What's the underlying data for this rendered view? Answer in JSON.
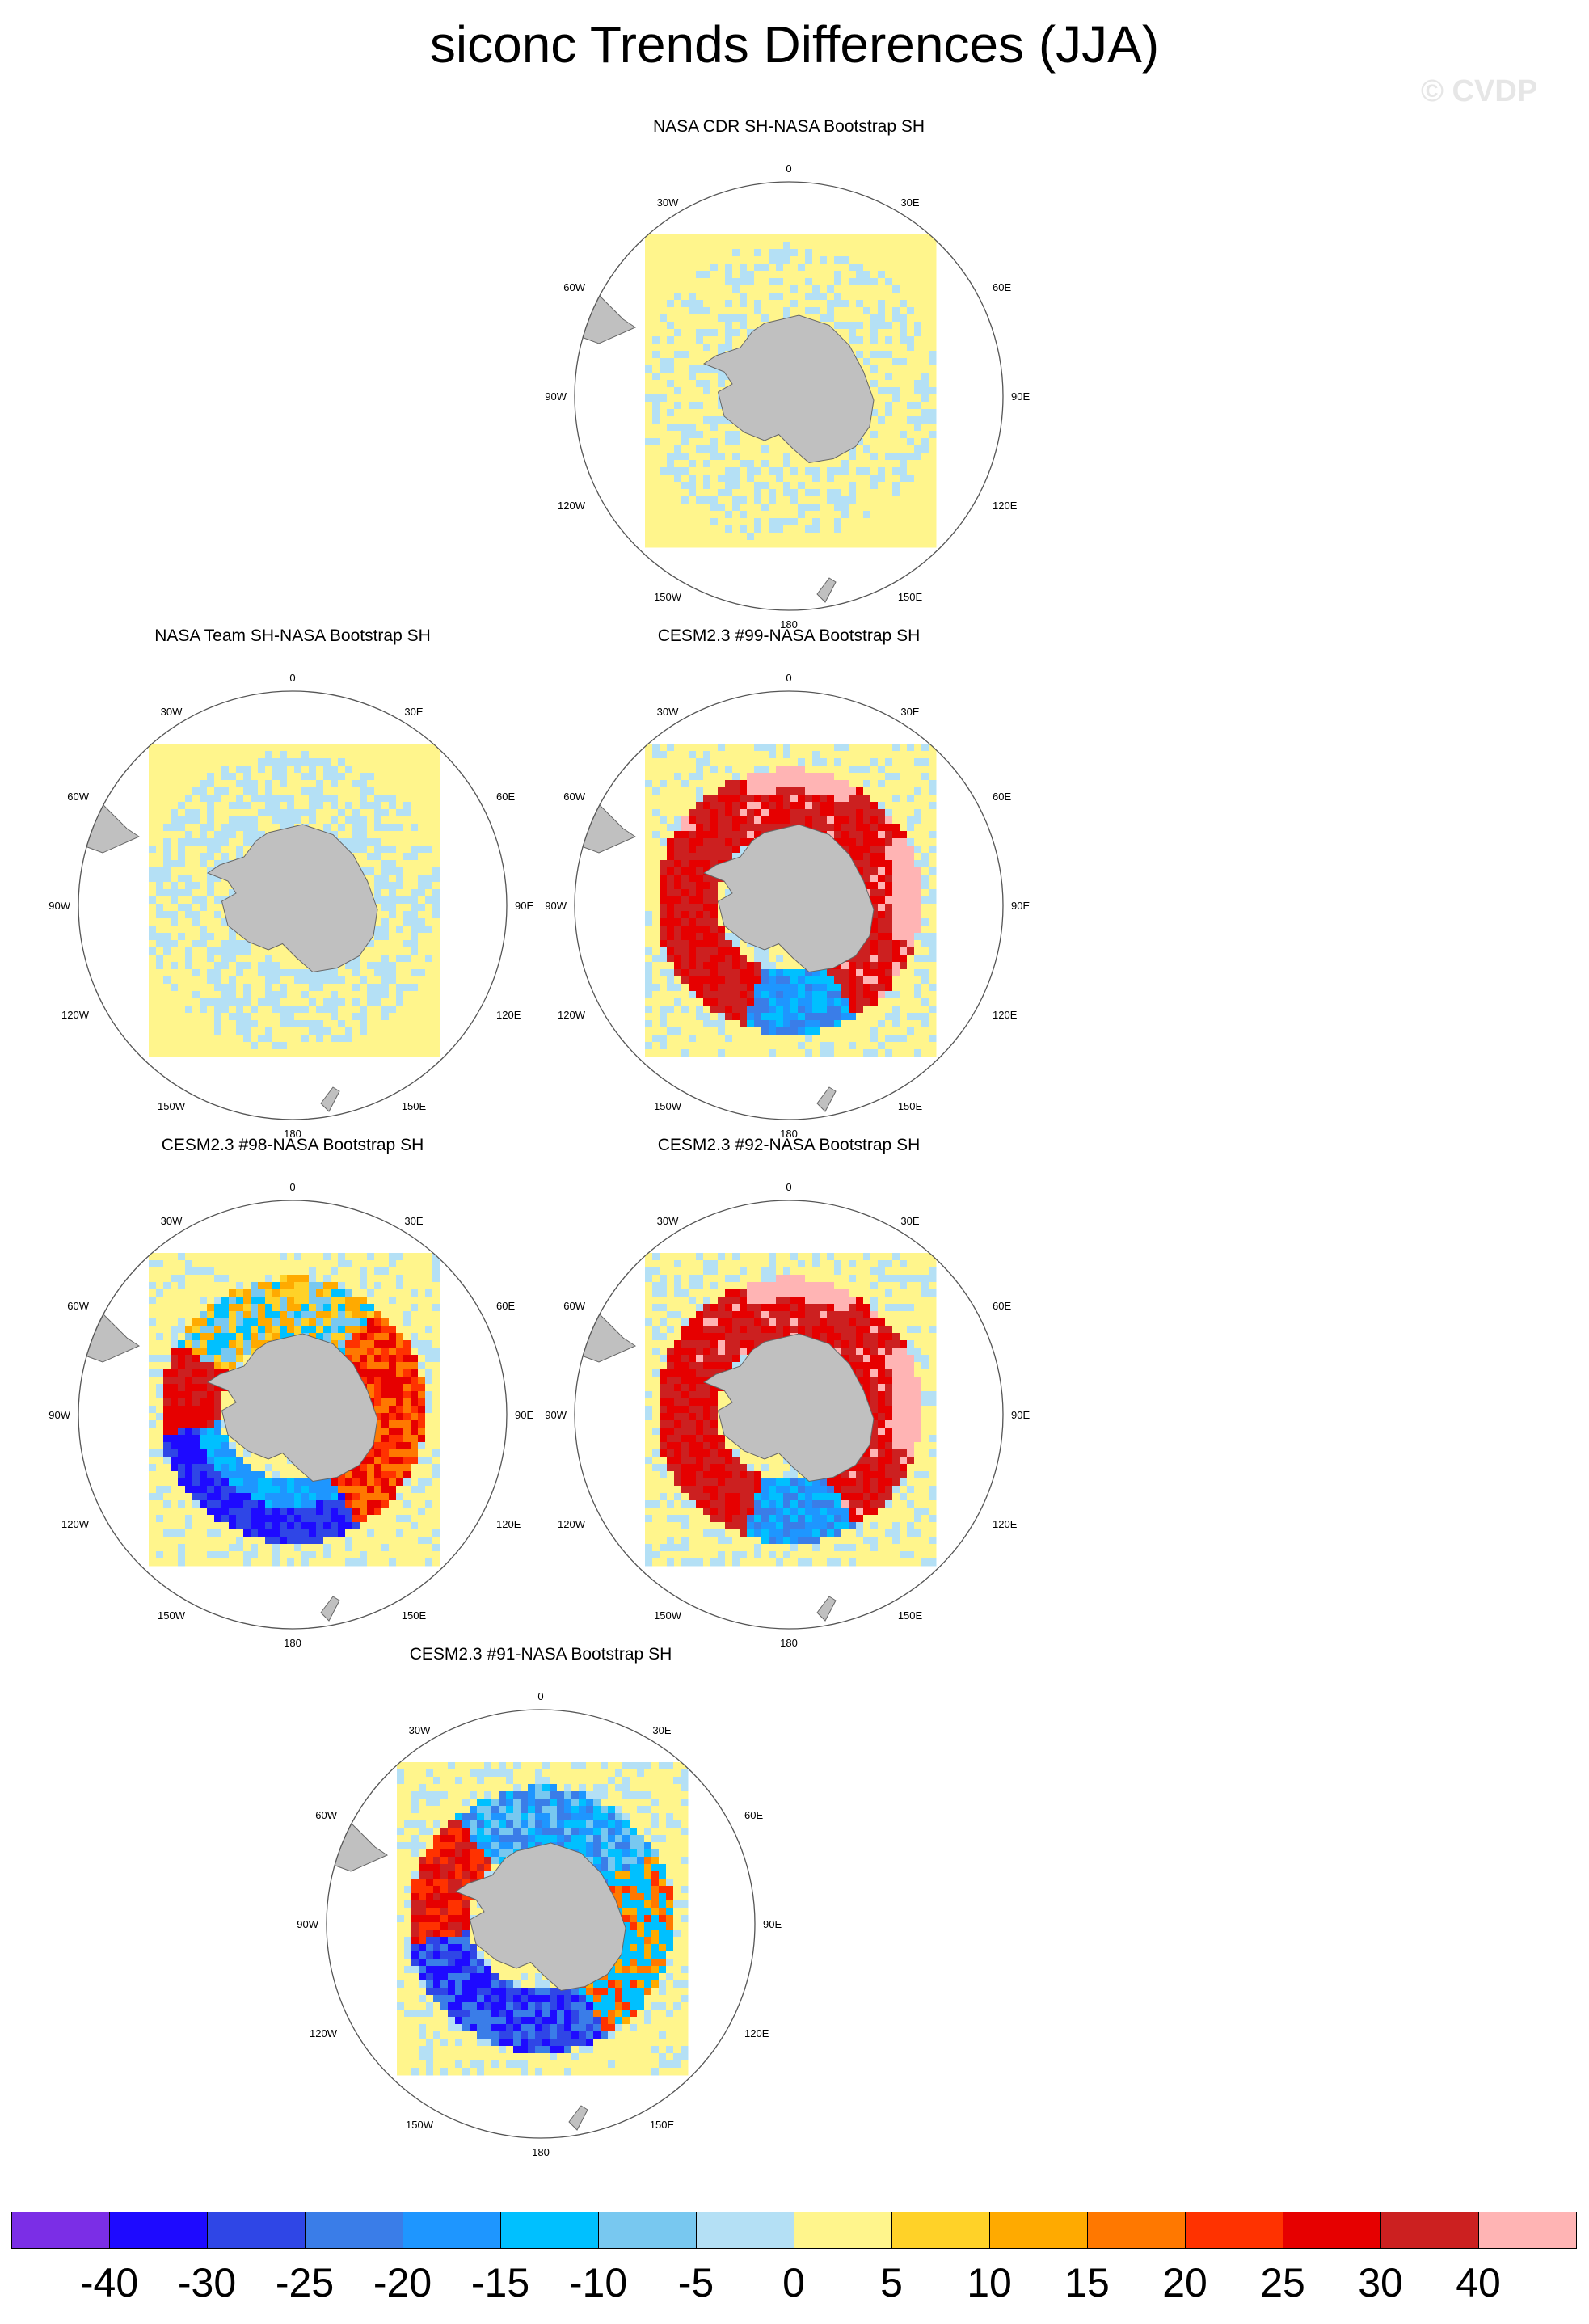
{
  "title": "siconc Trends Differences (JJA)",
  "watermark": "© CVDP",
  "panels": [
    {
      "title": "NASA CDR SH-NASA Bootstrap SH",
      "pattern": "cdr"
    },
    {
      "title": "NASA Team SH-NASA Bootstrap SH",
      "pattern": "team"
    },
    {
      "title": "CESM2.3 #99-NASA Bootstrap SH",
      "pattern": "m99"
    },
    {
      "title": "CESM2.3 #98-NASA Bootstrap SH",
      "pattern": "m98"
    },
    {
      "title": "CESM2.3 #92-NASA Bootstrap SH",
      "pattern": "m92"
    },
    {
      "title": "CESM2.3 #91-NASA Bootstrap SH",
      "pattern": "m91"
    }
  ],
  "lon_labels": {
    "top": "0",
    "bottom": "180",
    "tl": "30W",
    "tr": "30E",
    "ul": "60W",
    "ur": "60E",
    "l": "90W",
    "r": "90E",
    "ll": "120W",
    "lr": "120E",
    "bl": "150W",
    "br": "150E"
  },
  "colorbar": {
    "colors": [
      "#7b2ee6",
      "#1e0aff",
      "#2f46e6",
      "#3a7de8",
      "#1e96ff",
      "#00c0ff",
      "#78c8f0",
      "#b4e0f5",
      "#fff58c",
      "#ffd228",
      "#ffaa00",
      "#ff7800",
      "#ff3200",
      "#e60000",
      "#cc2020",
      "#ffb4b4"
    ],
    "labels": [
      "-40",
      "-30",
      "-25",
      "-20",
      "-15",
      "-10",
      "-5",
      "0",
      "5",
      "10",
      "15",
      "20",
      "25",
      "30",
      "40"
    ]
  }
}
